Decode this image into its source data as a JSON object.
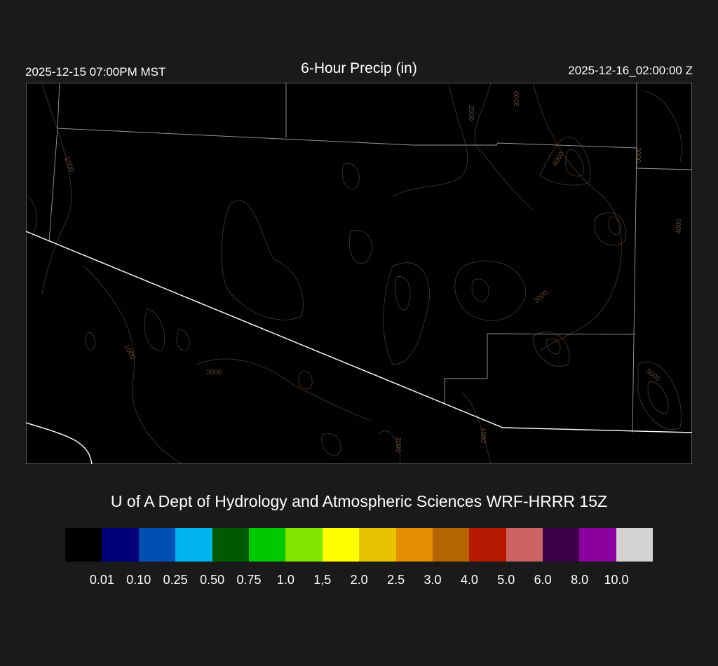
{
  "header": {
    "local_time": "2025-12-15 07:00PM MST",
    "title": "6-Hour Precip (in)",
    "valid_time": "2025-12-16_02:00:00 Z"
  },
  "map": {
    "background": "#000000",
    "contour_color": "#5e4a35",
    "contour_labels": [
      "1000",
      "2000",
      "3000",
      "4000",
      "3000",
      "4000",
      "3000",
      "1000",
      "2000",
      "3000",
      "4000",
      "5000"
    ]
  },
  "credit": "U of A Dept of Hydrology and Atmospheric Sciences WRF-HRRR 15Z",
  "colorbar": {
    "colors": [
      "#000000",
      "#000078",
      "#0050b4",
      "#00b4f0",
      "#005a00",
      "#00c800",
      "#80e600",
      "#ffff00",
      "#e6c300",
      "#e68c00",
      "#b46400",
      "#b41900",
      "#cd6464",
      "#3c004b",
      "#8c00a0",
      "#d2d2d2"
    ],
    "labels": [
      "0.01",
      "0.10",
      "0.25",
      "0.50",
      "0.75",
      "1.0",
      "1,5",
      "2.0",
      "2.5",
      "3.0",
      "4.0",
      "5.0",
      "6.0",
      "8.0",
      "10.0"
    ]
  }
}
